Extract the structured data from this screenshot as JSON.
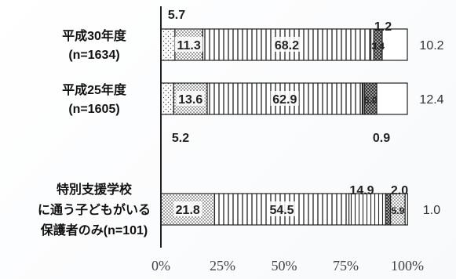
{
  "chart_data": {
    "type": "bar",
    "stacked": true,
    "orientation": "horizontal",
    "x_tick_labels": [
      "0%",
      "25%",
      "50%",
      "75%",
      "100%"
    ],
    "xlim": [
      0,
      100
    ],
    "categories": [
      [
        "平成30年度",
        "(n=1634)"
      ],
      [
        "平成25年度",
        "(n=1605)"
      ],
      [
        "特別支援学校",
        "に通う子どもがいる",
        "保護者のみ(n=101)"
      ]
    ],
    "series": [
      {
        "values": [
          5.7,
          5.2,
          0
        ],
        "pattern": "dots"
      },
      {
        "values": [
          11.3,
          13.6,
          21.8
        ],
        "pattern": "dense-dots"
      },
      {
        "values": [
          68.2,
          62.9,
          54.5
        ],
        "pattern": "vertical-lines"
      },
      {
        "values": [
          1.2,
          0.9,
          14.9
        ],
        "pattern": "vertical-lines-thin"
      },
      {
        "values": [
          3.4,
          5.0,
          2.0
        ],
        "pattern": "checker"
      },
      {
        "values": [
          0,
          0,
          5.9
        ],
        "pattern": "dense-dots"
      },
      {
        "values": [
          10.2,
          12.4,
          1.0
        ],
        "pattern": "blank"
      }
    ],
    "labels": {
      "top": [
        "5.7",
        "1.2",
        "14.9",
        "2.0"
      ],
      "bottom": [
        "5.2",
        "0.9"
      ],
      "inside": [
        [
          "11.3",
          "68.2",
          "3.4"
        ],
        [
          "13.6",
          "62.9",
          "5.0"
        ],
        [
          "21.8",
          "54.5",
          "5.9"
        ]
      ],
      "outside": [
        "10.2",
        "12.4",
        "1.0"
      ]
    },
    "colors": {
      "stroke": "#222222",
      "fill": "#ffffff",
      "pattern": "#333333"
    }
  }
}
